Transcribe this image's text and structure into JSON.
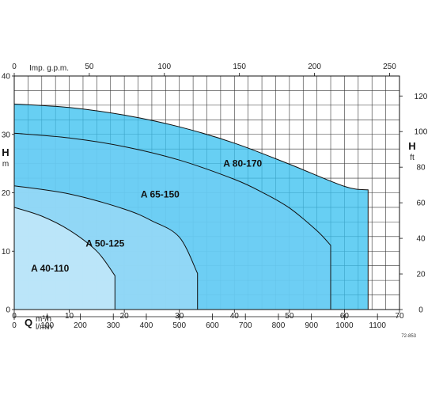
{
  "chart_data": {
    "type": "area",
    "x_axis": {
      "label": "Q",
      "range": [
        0,
        70
      ],
      "ticks": [
        0,
        10,
        20,
        30,
        40,
        50,
        60,
        70
      ],
      "unit": "m³/h"
    },
    "x_axis_secondary_bottom": {
      "unit": "l/min",
      "ticks": [
        0,
        100,
        200,
        300,
        400,
        500,
        600,
        700,
        800,
        900,
        1000,
        1100
      ]
    },
    "x_axis_top": {
      "unit": "Imp. g.p.m.",
      "ticks": [
        0,
        50,
        100,
        150,
        200,
        250
      ]
    },
    "y_axis": {
      "label": "H",
      "unit": "m",
      "range": [
        0,
        40
      ],
      "ticks": [
        0,
        10,
        20,
        30,
        40
      ]
    },
    "y_axis_right": {
      "label": "H",
      "unit": "ft",
      "ticks": [
        0,
        20,
        40,
        60,
        80,
        100,
        120
      ]
    },
    "grid": true,
    "series": [
      {
        "name": "A 80-170",
        "color": "#3cc2f0",
        "x": [
          0,
          10,
          20,
          30,
          40,
          50,
          60,
          64.3
        ],
        "y": [
          35.2,
          34.6,
          33.3,
          31.3,
          28.5,
          24.9,
          21.1,
          20.5
        ]
      },
      {
        "name": "A 65-150",
        "color": "#6fcdf3",
        "x": [
          0,
          10,
          20,
          30,
          40,
          45,
          50,
          55,
          57.5
        ],
        "y": [
          30.2,
          29.4,
          27.9,
          25.6,
          22.3,
          20.1,
          17.4,
          13.5,
          11.0
        ]
      },
      {
        "name": "A 50-125",
        "color": "#9bdaf6",
        "x": [
          0,
          10,
          20,
          25,
          30,
          33.3
        ],
        "y": [
          21.2,
          19.8,
          17.2,
          15.2,
          12.4,
          6.2
        ]
      },
      {
        "name": "A 40-110",
        "color": "#c6e9fa",
        "x": [
          0,
          5,
          10,
          15,
          18.3
        ],
        "y": [
          17.5,
          16.0,
          13.6,
          10.0,
          5.8
        ]
      }
    ],
    "annotations": [
      "72-853"
    ]
  }
}
